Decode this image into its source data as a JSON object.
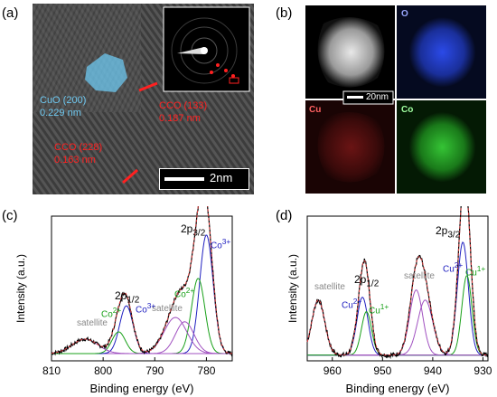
{
  "panels": {
    "a": "(a)",
    "b": "(b)",
    "c": "(c)",
    "d": "(d)"
  },
  "hrtem": {
    "cuo_label": "CuO (200)",
    "cuo_d": "0.229 nm",
    "cco133_label": "CCO (133)",
    "cco133_d": "0.187 nm",
    "cco228_label": "CCO (228)",
    "cco228_d": "0.163 nm",
    "scale": "2nm",
    "colors": {
      "cuo": "#6ec8f0",
      "cco": "#ff2020"
    }
  },
  "eds": {
    "scale": "20nm",
    "labels": {
      "o": "O",
      "cu": "Cu",
      "co": "Co"
    },
    "colors": {
      "o": "#1a3fd6",
      "cu": "#c01818",
      "co": "#20b020"
    }
  },
  "xps_co": {
    "xlabel": "Binding energy (eV)",
    "ylabel": "Intensity (a.u.)",
    "ticks": [
      "810",
      "800",
      "790",
      "780"
    ],
    "annotations": {
      "p32_main": "2p",
      "p32_sub": "3/2",
      "p12_main": "2p",
      "p12_sub": "1/2",
      "co3_right": "Co",
      "co3_right_sup": "3+",
      "co2_mid": "Co",
      "co2_mid_sup": "2+",
      "co2_left": "Co",
      "co2_left_sup": "2+",
      "co3_left": "Co",
      "co3_left_sup": "3+",
      "sat_left": "satellite",
      "sat_mid": "satellite"
    }
  },
  "xps_cu": {
    "xlabel": "Binding energy (eV)",
    "ylabel": "Intensity (a.u.)",
    "ticks": [
      "960",
      "950",
      "940",
      "930"
    ],
    "annotations": {
      "p32_main": "2p",
      "p32_sub": "3/2",
      "p12_main": "2p",
      "p12_sub": "1/2",
      "cu2_right": "Cu",
      "cu2_right_sup": "2+",
      "cu1_right": "Cu",
      "cu1_right_sup": "1+",
      "cu2_left": "Cu",
      "cu2_left_sup": "2+",
      "cu1_left": "Cu",
      "cu1_left_sup": "1+",
      "sat_left": "satellite",
      "sat_mid": "satellite"
    }
  },
  "chart_data": [
    {
      "type": "line",
      "xlabel": "Binding energy (eV)",
      "ylabel": "Intensity (a.u.)",
      "xlim": [
        810,
        775
      ],
      "ticks": [
        810,
        800,
        790,
        780
      ],
      "series": [
        {
          "name": "Co3+",
          "color": "#2020c0",
          "center": 780.0,
          "height": 0.82,
          "width": 1.3
        },
        {
          "name": "Co2+",
          "color": "#18a018",
          "center": 781.6,
          "height": 0.52,
          "width": 1.3
        },
        {
          "name": "satellite",
          "color": "#a050c0",
          "center": 786.0,
          "height": 0.25,
          "width": 2.2
        },
        {
          "name": "satellite",
          "color": "#a050c0",
          "center": 784.2,
          "height": 0.22,
          "width": 1.8
        },
        {
          "name": "Co3+",
          "color": "#2020c0",
          "center": 795.5,
          "height": 0.33,
          "width": 1.3
        },
        {
          "name": "Co2+",
          "color": "#18a018",
          "center": 797.0,
          "height": 0.15,
          "width": 1.3
        },
        {
          "name": "satellite",
          "color": "#a050c0",
          "center": 803.5,
          "height": 0.1,
          "width": 2.5
        }
      ]
    },
    {
      "type": "line",
      "xlabel": "Binding energy (eV)",
      "ylabel": "Intensity (a.u.)",
      "xlim": [
        965,
        929
      ],
      "ticks": [
        960,
        950,
        940,
        930
      ],
      "series": [
        {
          "name": "Cu2+",
          "color": "#2020c0",
          "center": 934.0,
          "height": 0.78,
          "width": 1.1
        },
        {
          "name": "Cu1+",
          "color": "#18a018",
          "center": 933.2,
          "height": 0.55,
          "width": 1.0
        },
        {
          "name": "satellite",
          "color": "#a050c0",
          "center": 943.3,
          "height": 0.45,
          "width": 1.3
        },
        {
          "name": "satellite",
          "color": "#a050c0",
          "center": 941.5,
          "height": 0.38,
          "width": 1.5
        },
        {
          "name": "Cu2+",
          "color": "#2020c0",
          "center": 954.0,
          "height": 0.4,
          "width": 1.1
        },
        {
          "name": "Cu1+",
          "color": "#18a018",
          "center": 953.2,
          "height": 0.3,
          "width": 1.0
        },
        {
          "name": "satellite",
          "color": "#a050c0",
          "center": 962.8,
          "height": 0.38,
          "width": 1.3
        }
      ]
    }
  ]
}
